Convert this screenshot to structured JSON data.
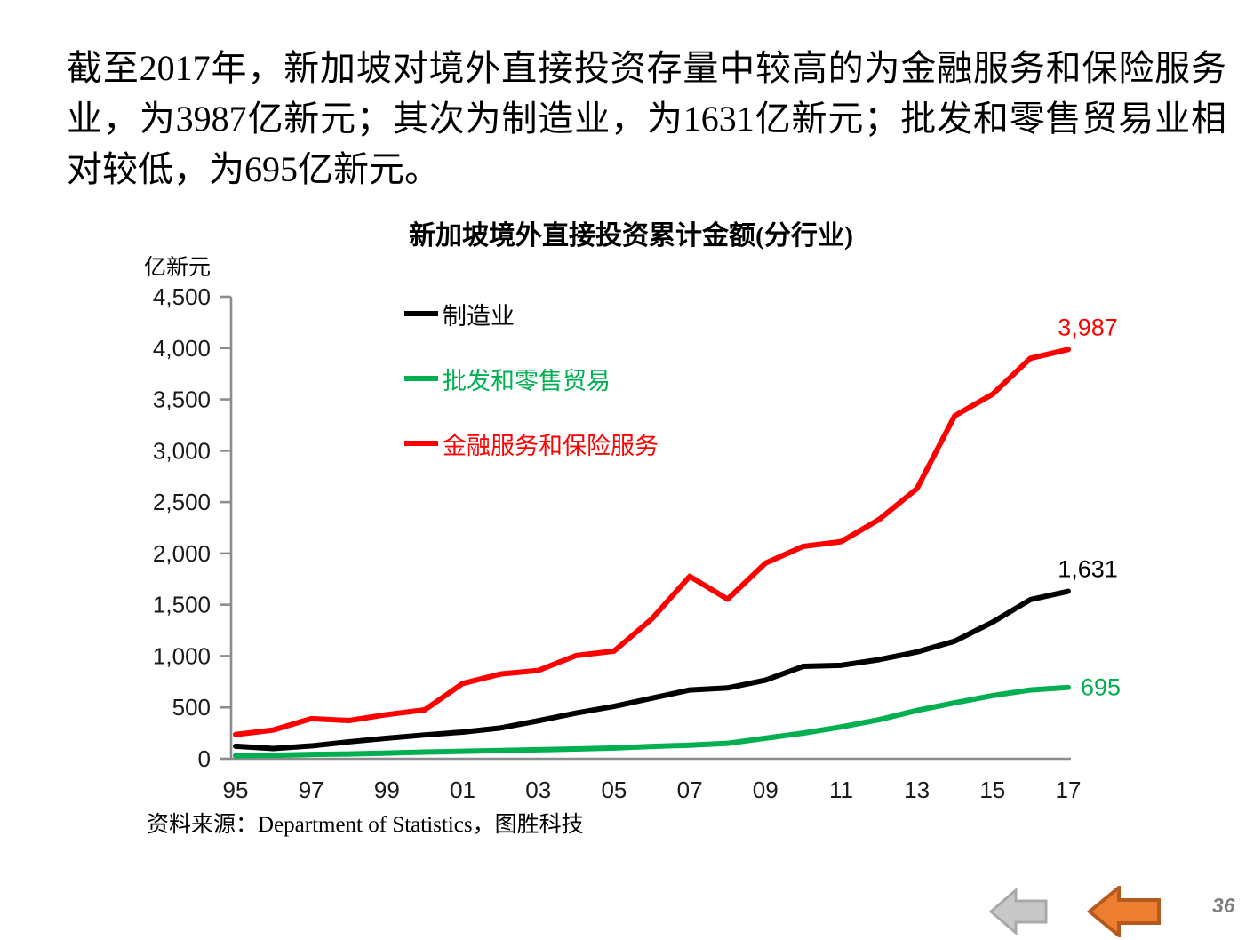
{
  "slide": {
    "intro_text": "截至2017年，新加坡对境外直接投资存量中较高的为金融服务和保险服务业，为3987亿新元；其次为制造业，为1631亿新元；批发和零售贸易业相对较低，为695亿新元。",
    "source_note": "资料来源：Department of Statistics，图胜科技",
    "page_number": "36"
  },
  "chart_data": {
    "type": "line",
    "title": "新加坡境外直接投资累计金额(分行业)",
    "unit_label": "亿新元",
    "x": [
      1995,
      1996,
      1997,
      1998,
      1999,
      2000,
      2001,
      2002,
      2003,
      2004,
      2005,
      2006,
      2007,
      2008,
      2009,
      2010,
      2011,
      2012,
      2013,
      2014,
      2015,
      2016,
      2017
    ],
    "x_tick_labels": [
      "95",
      "97",
      "99",
      "01",
      "03",
      "05",
      "07",
      "09",
      "11",
      "13",
      "15",
      "17"
    ],
    "y_tick_labels": [
      "0",
      "500",
      "1,000",
      "1,500",
      "2,000",
      "2,500",
      "3,000",
      "3,500",
      "4,000",
      "4,500"
    ],
    "ylim": [
      0,
      4500
    ],
    "ytick_step": 500,
    "grid": false,
    "legend_position": "inside-top-left",
    "axis_color": "#8C8C8C",
    "tick_label_color": "#1A1A1A",
    "series": [
      {
        "name": "制造业",
        "color": "#000000",
        "end_label": "1,631",
        "end_label_placement": "above",
        "values": [
          122,
          100,
          125,
          165,
          200,
          232,
          260,
          300,
          370,
          445,
          510,
          590,
          670,
          690,
          765,
          900,
          910,
          965,
          1040,
          1145,
          1330,
          1550,
          1631
        ]
      },
      {
        "name": "批发和零售贸易",
        "color": "#00B050",
        "end_label": "695",
        "end_label_placement": "right",
        "values": [
          30,
          34,
          42,
          47,
          55,
          65,
          72,
          80,
          88,
          95,
          105,
          120,
          132,
          150,
          200,
          250,
          310,
          380,
          470,
          545,
          615,
          670,
          695
        ]
      },
      {
        "name": "金融服务和保险服务",
        "color": "#FF0000",
        "end_label": "3,987",
        "end_label_placement": "above",
        "values": [
          236,
          280,
          390,
          372,
          430,
          476,
          733,
          825,
          860,
          1005,
          1048,
          1363,
          1777,
          1554,
          1905,
          2069,
          2115,
          2330,
          2630,
          3340,
          3550,
          3900,
          3987
        ]
      }
    ]
  },
  "nav": {
    "icons": {
      "gray_back_arrow": "left-block-arrow",
      "orange_back_arrow": "left-block-arrow"
    },
    "colors": {
      "gray_arrow_fill": "#C8C8C8",
      "gray_arrow_border": "#A9A9A9",
      "orange_arrow_fill": "#ED7D31",
      "orange_arrow_border": "#B55A1E",
      "page_number": "#7F7F7F"
    }
  }
}
